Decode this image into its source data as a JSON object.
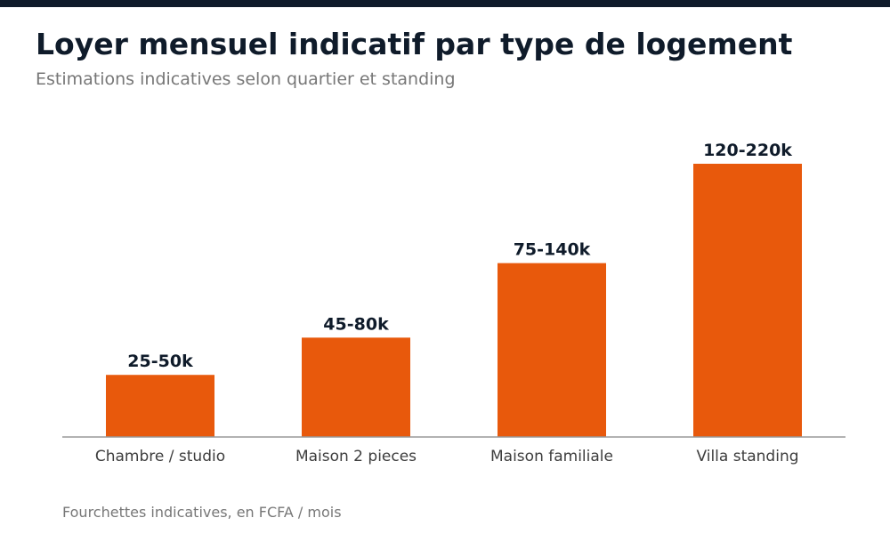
{
  "header": {
    "title": "Loyer mensuel indicatif par type de logement",
    "subtitle": "Estimations indicatives selon quartier et standing"
  },
  "footnote": "Fourchettes indicatives, en FCFA / mois",
  "colors": {
    "bar": "#e8590c",
    "accent_bar": "#0f1b2a",
    "axis": "#999999",
    "label": "#0f1b2a",
    "category": "#3d3d3d"
  },
  "chart_data": {
    "type": "bar",
    "title": "Loyer mensuel indicatif par type de logement",
    "subtitle": "Estimations indicatives selon quartier et standing",
    "xlabel": "",
    "ylabel": "",
    "categories": [
      "Chambre / studio",
      "Maison 2 pieces",
      "Maison familiale",
      "Villa standing"
    ],
    "values": [
      50,
      80,
      140,
      220
    ],
    "ranges": [
      [
        25,
        50
      ],
      [
        45,
        80
      ],
      [
        75,
        140
      ],
      [
        120,
        220
      ]
    ],
    "data_labels": [
      "25-50k",
      "45-80k",
      "75-140k",
      "120-220k"
    ],
    "unit": "k FCFA / mois",
    "ylim": [
      0,
      260
    ],
    "grid": false,
    "legend": "none"
  }
}
